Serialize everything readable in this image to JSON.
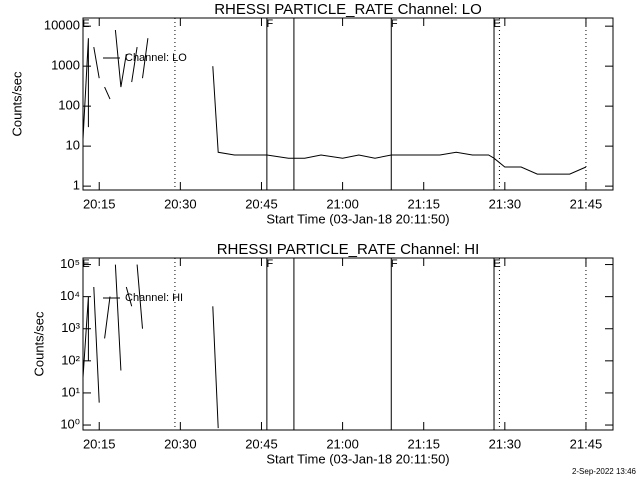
{
  "chart_data": [
    {
      "type": "line",
      "title": "RHESSI PARTICLE_RATE Channel: LO",
      "xlabel": "Start Time (03-Jan-18 20:11:50)",
      "ylabel": "Counts/sec",
      "log_y": true,
      "ylim": [
        0.8,
        16000
      ],
      "yticks": [
        1,
        10,
        100,
        1000,
        10000
      ],
      "xlim": [
        "20:12",
        "21:50"
      ],
      "xticks": [
        "20:15",
        "20:30",
        "20:45",
        "21:00",
        "21:15",
        "21:30",
        "21:45"
      ],
      "color": "#000000",
      "series": [
        {
          "name": "Channel: LO",
          "color": "#000000",
          "x": [
            "20:12",
            "20:13",
            "20:13",
            null,
            "20:14",
            "20:15",
            null,
            "20:16",
            "20:17",
            null,
            "20:18",
            "20:19",
            "20:20",
            null,
            "20:21",
            "20:22",
            null,
            "20:23",
            "20:24",
            null,
            "20:36",
            "20:37",
            "20:40",
            "20:43",
            "20:46",
            "20:50",
            "20:53",
            "20:56",
            "21:00",
            "21:03",
            "21:06",
            "21:09",
            "21:12",
            "21:15",
            "21:18",
            "21:21",
            "21:24",
            "21:27",
            "21:28",
            "21:30",
            "21:33",
            "21:36",
            "21:39",
            "21:42",
            "21:45"
          ],
          "values": [
            15,
            5000,
            30,
            null,
            3000,
            500,
            null,
            300,
            150,
            null,
            8000,
            300,
            2000,
            null,
            400,
            3000,
            null,
            500,
            5000,
            null,
            1000,
            7,
            6,
            6,
            6,
            5,
            5,
            6,
            5,
            6,
            5,
            6,
            6,
            6,
            6,
            7,
            6,
            6,
            5,
            3,
            3,
            2,
            2,
            2,
            3
          ]
        }
      ],
      "markers": [
        {
          "x": "20:12",
          "style": "none",
          "label": "E"
        },
        {
          "x": "20:29",
          "style": "dotted"
        },
        {
          "x": "20:46",
          "style": "solid",
          "label": "F"
        },
        {
          "x": "20:51",
          "style": "solid"
        },
        {
          "x": "21:09",
          "style": "solid",
          "label": "F"
        },
        {
          "x": "21:28",
          "style": "solid",
          "label": "E"
        },
        {
          "x": "21:29",
          "style": "dotted"
        },
        {
          "x": "21:45",
          "style": "dotted"
        }
      ]
    },
    {
      "type": "line",
      "title": "RHESSI PARTICLE_RATE Channel: HI",
      "xlabel": "Start Time (03-Jan-18 20:11:50)",
      "ylabel": "Counts/sec",
      "log_y": true,
      "ylim": [
        0.7,
        160000
      ],
      "yticks": [
        {
          "value": 1,
          "label": "10⁰"
        },
        {
          "value": 10,
          "label": "10¹"
        },
        {
          "value": 100,
          "label": "10²"
        },
        {
          "value": 1000,
          "label": "10³"
        },
        {
          "value": 10000,
          "label": "10⁴"
        },
        {
          "value": 100000,
          "label": "10⁵"
        }
      ],
      "xlim": [
        "20:12",
        "21:50"
      ],
      "xticks": [
        "20:15",
        "20:30",
        "20:45",
        "21:00",
        "21:15",
        "21:30",
        "21:45"
      ],
      "color": "#000000",
      "series": [
        {
          "name": "Channel: HI",
          "color": "#000000",
          "x": [
            "20:12",
            "20:13",
            "20:13",
            null,
            "20:14",
            "20:15",
            null,
            "20:16",
            "20:17",
            null,
            "20:18",
            "20:19",
            null,
            "20:20",
            "20:21",
            null,
            "20:22",
            "20:23",
            null,
            "20:36",
            "20:37"
          ],
          "values": [
            30,
            10000,
            100,
            null,
            20000,
            5,
            null,
            500,
            10000,
            null,
            100000,
            50,
            null,
            20000,
            5000,
            null,
            100000,
            1000,
            null,
            5000,
            0.8
          ]
        }
      ],
      "markers": [
        {
          "x": "20:12",
          "style": "none",
          "label": "E"
        },
        {
          "x": "20:29",
          "style": "dotted"
        },
        {
          "x": "20:46",
          "style": "solid",
          "label": "F"
        },
        {
          "x": "20:51",
          "style": "solid"
        },
        {
          "x": "21:09",
          "style": "solid",
          "label": "F"
        },
        {
          "x": "21:28",
          "style": "solid",
          "label": "E"
        },
        {
          "x": "21:29",
          "style": "dotted"
        },
        {
          "x": "21:45",
          "style": "dotted"
        }
      ]
    }
  ],
  "footer": "2-Sep-2022 13:46"
}
